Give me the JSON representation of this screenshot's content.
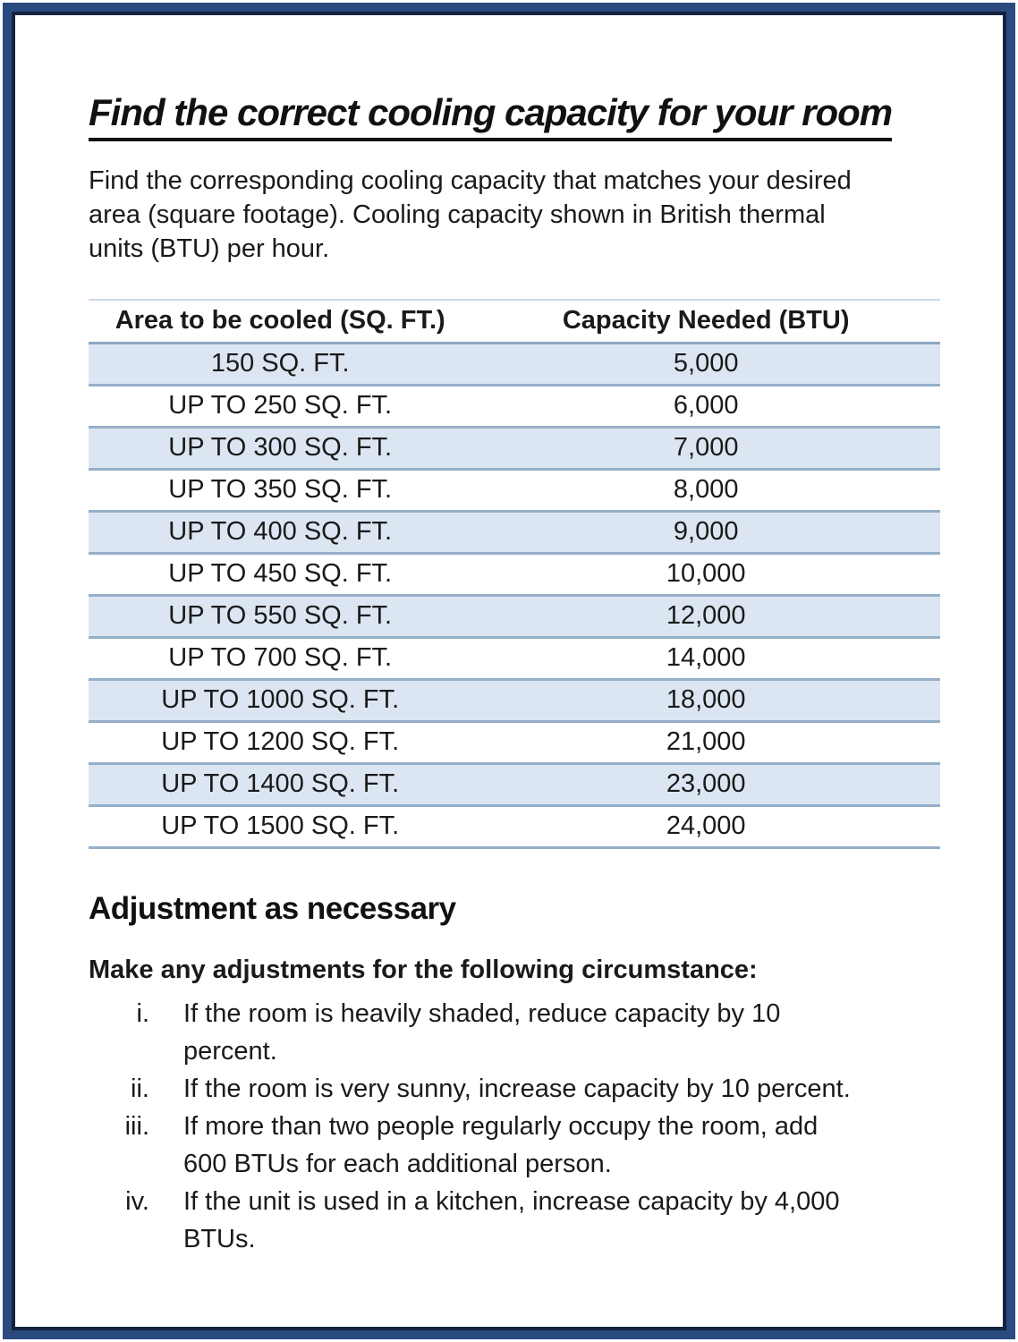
{
  "page": {
    "title": "Find the correct cooling capacity for your room",
    "intro": "Find the corresponding cooling capacity that matches your desired\narea (square footage). Cooling capacity shown in British thermal\nunits (BTU) per hour."
  },
  "table": {
    "headers": [
      "Area to be cooled (SQ. FT.)",
      "Capacity Needed (BTU)"
    ],
    "rows": [
      [
        "150 SQ. FT.",
        "5,000"
      ],
      [
        "UP TO 250 SQ. FT.",
        "6,000"
      ],
      [
        "UP TO 300 SQ. FT.",
        "7,000"
      ],
      [
        "UP TO 350 SQ. FT.",
        "8,000"
      ],
      [
        "UP TO 400 SQ. FT.",
        "9,000"
      ],
      [
        "UP TO 450 SQ. FT.",
        "10,000"
      ],
      [
        "UP TO 550 SQ. FT.",
        "12,000"
      ],
      [
        "UP TO 700 SQ. FT.",
        "14,000"
      ],
      [
        "UP TO 1000 SQ. FT.",
        "18,000"
      ],
      [
        "UP TO 1200 SQ. FT.",
        "21,000"
      ],
      [
        "UP TO 1400 SQ. FT.",
        "23,000"
      ],
      [
        "UP TO 1500 SQ. FT.",
        "24,000"
      ]
    ]
  },
  "adjustments": {
    "heading": "Adjustment as necessary",
    "lead": "Make any adjustments for the following circumstance:",
    "items": [
      {
        "marker": "i.",
        "text": "If the room is heavily shaded, reduce capacity by 10\npercent."
      },
      {
        "marker": "ii.",
        "text": "If the room is very sunny, increase capacity by 10 percent."
      },
      {
        "marker": "iii.",
        "text": "If more than two people regularly occupy the room, add\n600 BTUs for each additional person."
      },
      {
        "marker": "iv.",
        "text": "If the unit is used in a kitchen, increase capacity by 4,000\nBTUs."
      }
    ]
  },
  "colors": {
    "frame_outer": "#2b4b80",
    "frame_inner": "#15233f",
    "table_row_shading": "#dce6f2",
    "table_rule": "#96afc9",
    "table_top_rule": "#c9d9ea",
    "text": "#1a1a1a"
  }
}
